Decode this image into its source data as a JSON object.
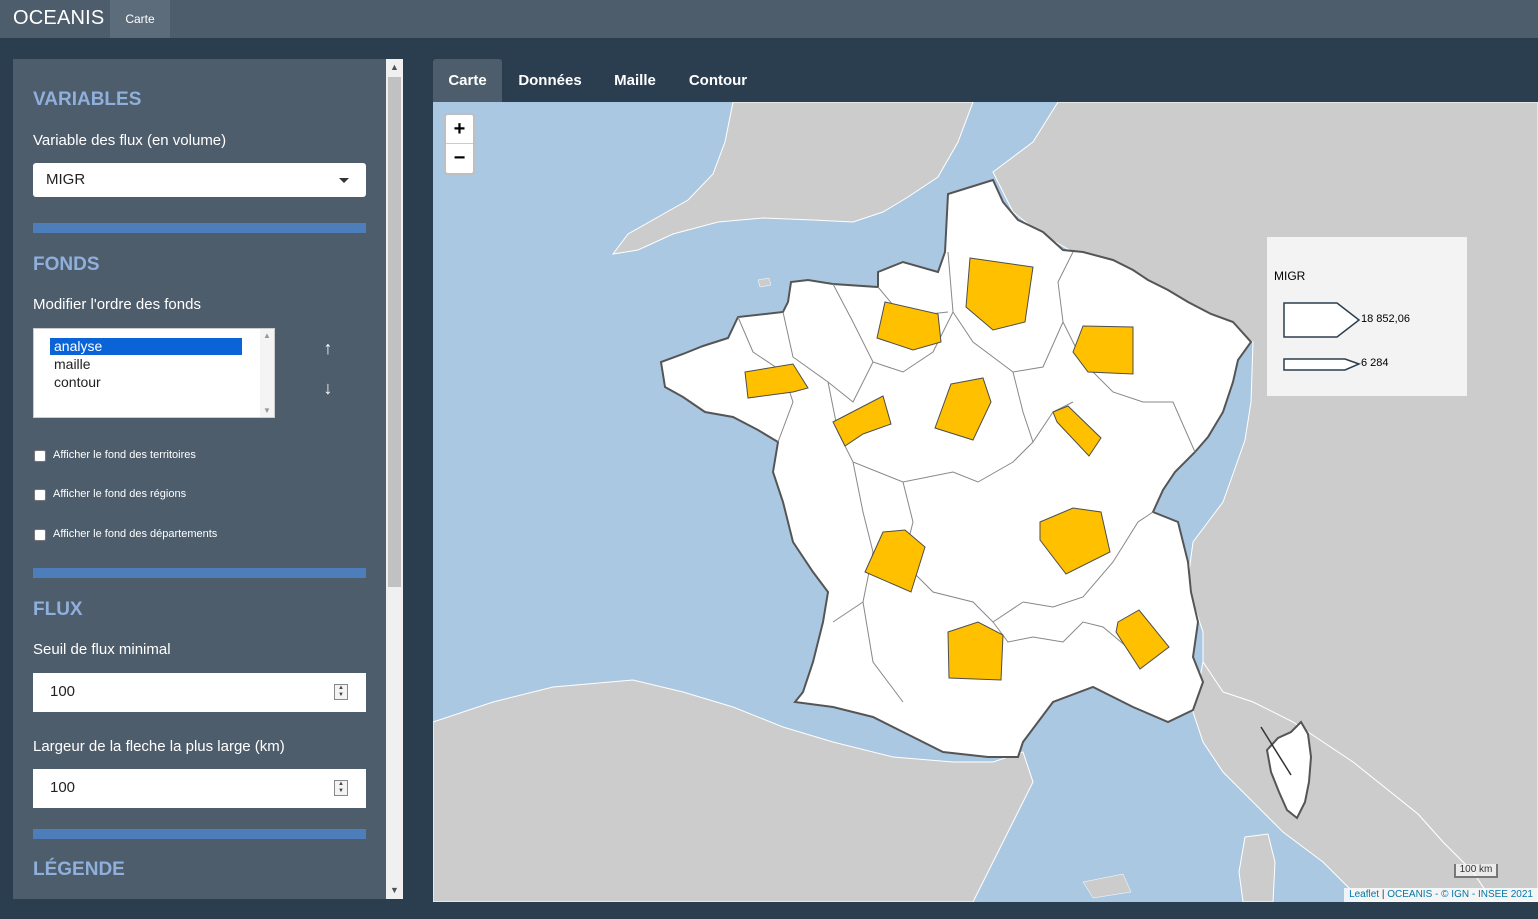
{
  "app": {
    "brand": "OCEANIS",
    "nav_tab": "Carte"
  },
  "sidebar": {
    "variables": {
      "title": "VARIABLES",
      "flux_label": "Variable des flux (en volume)",
      "flux_value": "MIGR"
    },
    "fonds": {
      "title": "FONDS",
      "order_label": "Modifier l'ordre des fonds",
      "order_items": [
        "analyse",
        "maille",
        "contour"
      ],
      "selected_item": "analyse",
      "checkboxes": [
        {
          "label": "Afficher le fond des territoires",
          "checked": false
        },
        {
          "label": "Afficher le fond des régions",
          "checked": false
        },
        {
          "label": "Afficher le fond des départements",
          "checked": false
        }
      ]
    },
    "flux": {
      "title": "FLUX",
      "seuil_label": "Seuil de flux minimal",
      "seuil_value": "100",
      "largeur_label": "Largeur de la fleche la plus large (km)",
      "largeur_value": "100"
    },
    "legende": {
      "title": "LÉGENDE"
    }
  },
  "tabs": [
    "Carte",
    "Données",
    "Maille",
    "Contour"
  ],
  "active_tab": "Carte",
  "map": {
    "zoom_in": "+",
    "zoom_out": "−",
    "legend": {
      "title": "MIGR",
      "max_label": "18 852,06",
      "min_label": "6 284"
    },
    "scale": "100 km",
    "attribution": {
      "leaflet": "Leaflet",
      "sep": " | ",
      "source": "OCEANIS - © IGN - INSEE 2021"
    },
    "colors": {
      "sea": "#abc8e2",
      "land_foreign": "#cccccc",
      "land_france": "#ffffff",
      "flow_fill": "#ffc000",
      "flow_stroke": "#4d4d4d"
    }
  },
  "icons": {
    "caret": "chevron-down-icon",
    "up": "arrow-up-icon",
    "down": "arrow-down-icon"
  }
}
